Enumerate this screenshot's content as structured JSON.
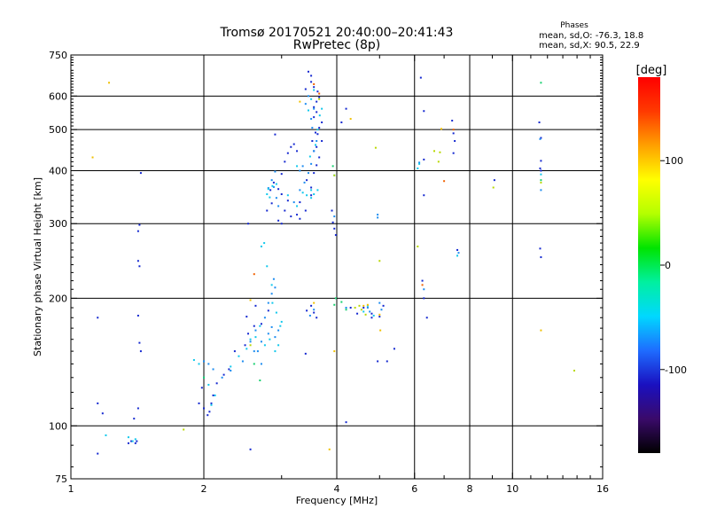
{
  "chart_data": {
    "type": "scatter",
    "title": "Tromsø 20170521 20:40:00–20:41:43",
    "subtitle": "RwPretec (8p)",
    "xlabel": "Frequency [MHz]",
    "ylabel": "Stationary phase Virtual Height [km]",
    "x_scale": "log",
    "y_scale": "log",
    "xlim": [
      1,
      16
    ],
    "ylim": [
      75,
      750
    ],
    "x_ticks": [
      1,
      2,
      4,
      6,
      8,
      10,
      16
    ],
    "x_ticklabels": [
      "1",
      "2",
      "4",
      "6",
      "8",
      "10",
      "16"
    ],
    "y_ticks": [
      75,
      100,
      200,
      300,
      400,
      500,
      600,
      750
    ],
    "y_ticklabels": [
      "75",
      "100",
      "200",
      "300",
      "400",
      "500",
      "600",
      "750"
    ],
    "x_gridlines": [
      2,
      4,
      6,
      8,
      10
    ],
    "y_gridlines": [
      100,
      200,
      300,
      400,
      500,
      600
    ],
    "grid": true,
    "stats": {
      "heading": "Phases",
      "line_o": "mean, sd,O: -76.3, 18.8",
      "line_x": "mean, sd,X:  90.5, 22.9"
    },
    "colorbar": {
      "label": "[deg]",
      "min": -180,
      "max": 180,
      "ticks": [
        100,
        0,
        -100
      ],
      "ticklabels": [
        "100",
        "0",
        "-100"
      ],
      "colormap": [
        "#000000",
        "#3a0a6a",
        "#1a10c0",
        "#1e6cff",
        "#00d8ff",
        "#00f0a0",
        "#00e400",
        "#b4ff00",
        "#ffff00",
        "#ffa000",
        "#ff3a00",
        "#ff0000"
      ]
    },
    "series": [
      {
        "color": "#1428d0",
        "points": [
          [
            1.15,
            86
          ],
          [
            1.35,
            91
          ],
          [
            1.37,
            92
          ],
          [
            1.4,
            91
          ],
          [
            1.41,
            92
          ],
          [
            1.15,
            113
          ],
          [
            1.18,
            107
          ],
          [
            1.39,
            104
          ],
          [
            1.42,
            110
          ],
          [
            1.15,
            180
          ],
          [
            1.42,
            182
          ],
          [
            1.43,
            157
          ],
          [
            1.44,
            150
          ],
          [
            1.42,
            245
          ],
          [
            1.43,
            238
          ],
          [
            1.42,
            288
          ],
          [
            1.43,
            298
          ],
          [
            1.44,
            395
          ],
          [
            1.95,
            113
          ],
          [
            2.0,
            110
          ],
          [
            2.04,
            106
          ],
          [
            2.06,
            108
          ],
          [
            2.08,
            113
          ],
          [
            2.1,
            118
          ],
          [
            1.98,
            123
          ],
          [
            2.14,
            126
          ],
          [
            2.22,
            132
          ],
          [
            2.28,
            136
          ],
          [
            2.35,
            150
          ],
          [
            2.48,
            155
          ],
          [
            2.52,
            165
          ],
          [
            2.6,
            172
          ],
          [
            2.5,
            181
          ],
          [
            2.62,
            192
          ],
          [
            2.7,
            174
          ],
          [
            2.8,
            187
          ],
          [
            2.55,
            88
          ],
          [
            2.52,
            300
          ],
          [
            2.78,
            322
          ],
          [
            2.85,
            335
          ],
          [
            2.95,
            305
          ],
          [
            3.0,
            300
          ],
          [
            3.05,
            322
          ],
          [
            3.1,
            340
          ],
          [
            3.0,
            352
          ],
          [
            2.95,
            362
          ],
          [
            2.83,
            360
          ],
          [
            2.88,
            375
          ],
          [
            3.0,
            393
          ],
          [
            3.05,
            420
          ],
          [
            3.1,
            440
          ],
          [
            3.15,
            455
          ],
          [
            3.2,
            462
          ],
          [
            3.25,
            445
          ],
          [
            2.9,
            487
          ],
          [
            3.15,
            312
          ],
          [
            3.25,
            315
          ],
          [
            3.3,
            308
          ],
          [
            3.4,
            322
          ],
          [
            3.3,
            337
          ],
          [
            3.5,
            350
          ],
          [
            3.5,
            365
          ],
          [
            3.42,
            380
          ],
          [
            3.55,
            395
          ],
          [
            3.6,
            412
          ],
          [
            3.65,
            430
          ],
          [
            3.55,
            445
          ],
          [
            3.6,
            455
          ],
          [
            3.7,
            470
          ],
          [
            3.62,
            488
          ],
          [
            3.65,
            505
          ],
          [
            3.7,
            520
          ],
          [
            3.55,
            535
          ],
          [
            3.6,
            550
          ],
          [
            3.55,
            565
          ],
          [
            3.6,
            582
          ],
          [
            3.65,
            596
          ],
          [
            3.62,
            615
          ],
          [
            3.55,
            630
          ],
          [
            3.5,
            648
          ],
          [
            3.5,
            670
          ],
          [
            3.45,
            685
          ],
          [
            3.4,
            623
          ],
          [
            3.58,
            492
          ],
          [
            3.52,
            470
          ],
          [
            3.42,
            187
          ],
          [
            3.5,
            192
          ],
          [
            3.55,
            185
          ],
          [
            3.6,
            180
          ],
          [
            3.4,
            148
          ],
          [
            3.9,
            322
          ],
          [
            3.92,
            302
          ],
          [
            3.95,
            292
          ],
          [
            3.98,
            282
          ],
          [
            4.2,
            102
          ],
          [
            4.3,
            190
          ],
          [
            4.45,
            184
          ],
          [
            4.6,
            190
          ],
          [
            4.8,
            184
          ],
          [
            5.0,
            181
          ],
          [
            5.1,
            192
          ],
          [
            5.4,
            152
          ],
          [
            4.95,
            142
          ],
          [
            5.2,
            142
          ],
          [
            4.1,
            520
          ],
          [
            4.2,
            560
          ],
          [
            4.8,
            180
          ],
          [
            6.2,
            663
          ],
          [
            6.3,
            553
          ],
          [
            6.3,
            425
          ],
          [
            6.3,
            350
          ],
          [
            6.25,
            220
          ],
          [
            6.3,
            200
          ],
          [
            6.4,
            180
          ],
          [
            7.3,
            525
          ],
          [
            7.35,
            490
          ],
          [
            7.4,
            470
          ],
          [
            7.35,
            440
          ],
          [
            7.5,
            260
          ],
          [
            9.1,
            380
          ],
          [
            11.5,
            520
          ],
          [
            11.6,
            478
          ],
          [
            11.6,
            422
          ],
          [
            11.55,
            405
          ],
          [
            11.6,
            400
          ],
          [
            11.55,
            262
          ],
          [
            11.6,
            250
          ]
        ]
      },
      {
        "color": "#1c8cf0",
        "points": [
          [
            2.0,
            142
          ],
          [
            2.05,
            140
          ],
          [
            2.1,
            136
          ],
          [
            2.2,
            130
          ],
          [
            2.3,
            135
          ],
          [
            2.45,
            142
          ],
          [
            2.6,
            150
          ],
          [
            2.7,
            158
          ],
          [
            2.8,
            165
          ],
          [
            2.85,
            171
          ],
          [
            2.9,
            162
          ],
          [
            2.95,
            168
          ],
          [
            2.75,
            180
          ],
          [
            2.8,
            195
          ],
          [
            2.85,
            205
          ],
          [
            2.9,
            212
          ],
          [
            2.88,
            222
          ],
          [
            2.65,
            150
          ],
          [
            2.7,
            140
          ],
          [
            2.55,
            158
          ],
          [
            2.62,
            168
          ],
          [
            2.95,
            330
          ],
          [
            2.92,
            345
          ],
          [
            2.88,
            366
          ],
          [
            2.85,
            380
          ],
          [
            2.9,
            398
          ],
          [
            3.2,
            337
          ],
          [
            3.3,
            360
          ],
          [
            3.38,
            375
          ],
          [
            3.45,
            395
          ],
          [
            3.5,
            415
          ],
          [
            3.55,
            445
          ],
          [
            3.6,
            470
          ],
          [
            3.52,
            505
          ],
          [
            3.5,
            530
          ],
          [
            3.55,
            560
          ],
          [
            3.45,
            600
          ],
          [
            3.4,
            575
          ],
          [
            3.35,
            410
          ],
          [
            3.3,
            400
          ],
          [
            2.8,
            364
          ],
          [
            3.55,
            188
          ],
          [
            3.48,
            182
          ],
          [
            4.7,
            190
          ],
          [
            4.75,
            186
          ],
          [
            5.0,
            195
          ],
          [
            5.05,
            188
          ],
          [
            4.95,
            310
          ],
          [
            4.95,
            315
          ],
          [
            3.95,
            312
          ],
          [
            4.2,
            190
          ],
          [
            6.15,
            418
          ],
          [
            6.3,
            210
          ],
          [
            7.55,
            256
          ],
          [
            11.6,
            360
          ],
          [
            11.55,
            475
          ]
        ]
      },
      {
        "color": "#10c8ec",
        "points": [
          [
            1.35,
            94
          ],
          [
            1.38,
            92
          ],
          [
            1.4,
            93
          ],
          [
            1.2,
            95
          ],
          [
            1.9,
            143
          ],
          [
            1.95,
            140
          ],
          [
            2.0,
            130
          ],
          [
            2.05,
            125
          ],
          [
            2.08,
            112
          ],
          [
            2.12,
            118
          ],
          [
            2.3,
            138
          ],
          [
            2.4,
            146
          ],
          [
            2.5,
            152
          ],
          [
            2.55,
            160
          ],
          [
            2.62,
            162
          ],
          [
            2.68,
            172
          ],
          [
            2.75,
            155
          ],
          [
            2.82,
            160
          ],
          [
            2.9,
            150
          ],
          [
            2.95,
            155
          ],
          [
            2.85,
            215
          ],
          [
            2.78,
            238
          ],
          [
            2.74,
            270
          ],
          [
            2.86,
            195
          ],
          [
            2.92,
            185
          ],
          [
            2.98,
            172
          ],
          [
            3.0,
            176
          ],
          [
            2.7,
            265
          ],
          [
            2.82,
            346
          ],
          [
            2.78,
            352
          ],
          [
            2.8,
            362
          ],
          [
            2.86,
            368
          ],
          [
            2.92,
            372
          ],
          [
            3.25,
            410
          ],
          [
            3.35,
            355
          ],
          [
            3.42,
            350
          ],
          [
            3.5,
            345
          ],
          [
            3.55,
            352
          ],
          [
            3.62,
            360
          ],
          [
            3.48,
            432
          ],
          [
            3.58,
            460
          ],
          [
            3.62,
            500
          ],
          [
            3.66,
            540
          ],
          [
            3.7,
            560
          ],
          [
            3.5,
            590
          ],
          [
            3.55,
            620
          ],
          [
            3.45,
            555
          ],
          [
            3.25,
            330
          ],
          [
            3.1,
            350
          ],
          [
            3.5,
            360
          ],
          [
            3.95,
            390
          ],
          [
            4.6,
            186
          ],
          [
            4.7,
            192
          ],
          [
            4.85,
            182
          ],
          [
            6.1,
            405
          ],
          [
            6.15,
            415
          ],
          [
            7.5,
            252
          ],
          [
            11.6,
            392
          ]
        ]
      },
      {
        "color": "#18d070",
        "points": [
          [
            2.0,
            130
          ],
          [
            2.6,
            140
          ],
          [
            2.68,
            128
          ],
          [
            3.92,
            410
          ],
          [
            3.95,
            193
          ],
          [
            3.98,
            200
          ],
          [
            4.1,
            196
          ],
          [
            4.2,
            188
          ],
          [
            11.6,
            645
          ],
          [
            11.6,
            380
          ]
        ]
      },
      {
        "color": "#b8d800",
        "points": [
          [
            1.8,
            98
          ],
          [
            2.55,
            155
          ],
          [
            3.65,
            590
          ],
          [
            3.95,
            390
          ],
          [
            4.4,
            190
          ],
          [
            4.5,
            192
          ],
          [
            4.55,
            188
          ],
          [
            4.65,
            183
          ],
          [
            4.9,
            453
          ],
          [
            5.0,
            245
          ],
          [
            6.1,
            265
          ],
          [
            6.65,
            445
          ],
          [
            6.85,
            442
          ],
          [
            6.8,
            420
          ],
          [
            9.05,
            365
          ],
          [
            11.6,
            375
          ],
          [
            13.8,
            135
          ]
        ]
      },
      {
        "color": "#f0c000",
        "points": [
          [
            1.22,
            645
          ],
          [
            1.12,
            430
          ],
          [
            2.55,
            198
          ],
          [
            3.3,
            582
          ],
          [
            3.55,
            195
          ],
          [
            3.95,
            150
          ],
          [
            3.85,
            88
          ],
          [
            4.6,
            192
          ],
          [
            4.7,
            193
          ],
          [
            5.0,
            183
          ],
          [
            5.02,
            168
          ],
          [
            6.9,
            502
          ],
          [
            11.6,
            168
          ],
          [
            4.3,
            530
          ]
        ]
      },
      {
        "color": "#f06000",
        "points": [
          [
            2.6,
            228
          ],
          [
            3.55,
            640
          ],
          [
            3.65,
            608
          ],
          [
            6.25,
            215
          ],
          [
            7.0,
            378
          ],
          [
            7.35,
            500
          ]
        ]
      }
    ]
  }
}
